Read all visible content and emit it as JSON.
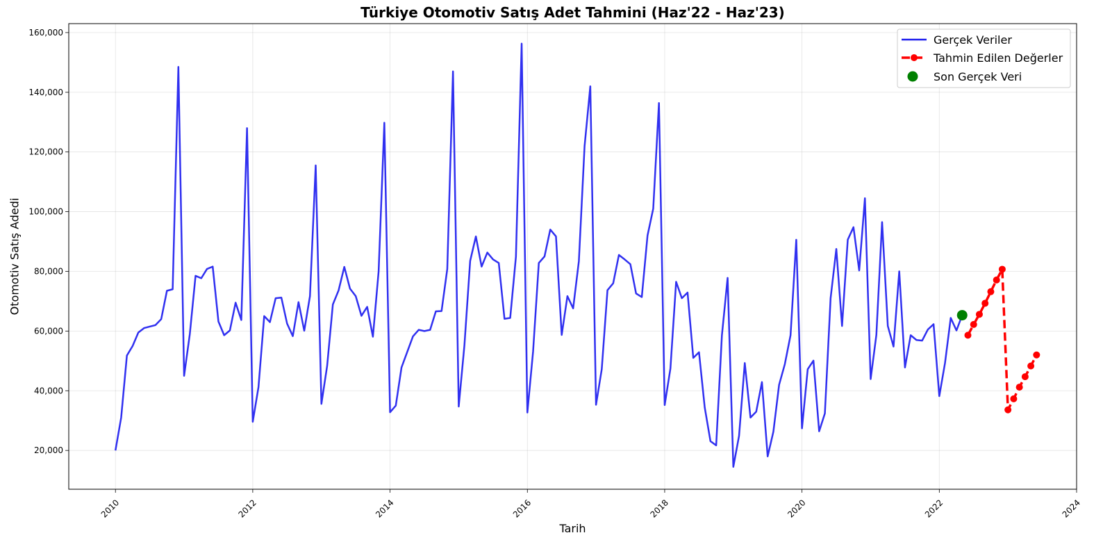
{
  "chart_data": {
    "type": "line",
    "title": "Türkiye Otomotiv Satış Adet Tahmini (Haz'22 - Haz'23)",
    "xlabel": "Tarih",
    "ylabel": "Otomotiv Satış Adedi",
    "xlim": [
      2009.32,
      2024.0
    ],
    "ylim": [
      7000,
      163000
    ],
    "x_ticks": [
      2010,
      2012,
      2014,
      2016,
      2018,
      2020,
      2022,
      2024
    ],
    "x_tick_labels": [
      "2010",
      "2012",
      "2014",
      "2016",
      "2018",
      "2020",
      "2022",
      "2024"
    ],
    "y_ticks": [
      20000,
      40000,
      60000,
      80000,
      100000,
      120000,
      140000,
      160000
    ],
    "y_tick_labels": [
      "20,000",
      "40,000",
      "60,000",
      "80,000",
      "100,000",
      "120,000",
      "140,000",
      "160,000"
    ],
    "grid": true,
    "legend_position": "top-right",
    "series": [
      {
        "name": "Gerçek Veriler",
        "style": "line",
        "color": "#1a1aee",
        "start": "2010-01",
        "frequency": "monthly",
        "values": [
          20000,
          31000,
          51800,
          55000,
          59500,
          61000,
          61500,
          62000,
          64000,
          73500,
          74000,
          148500,
          45000,
          59000,
          78500,
          77700,
          80800,
          81600,
          63200,
          58600,
          60200,
          69500,
          63700,
          128000,
          29600,
          41200,
          65000,
          63000,
          71000,
          71200,
          62500,
          58300,
          69700,
          60100,
          71700,
          115500,
          35600,
          48300,
          68900,
          73600,
          81500,
          74200,
          71700,
          65100,
          68100,
          58100,
          80000,
          129800,
          32800,
          35000,
          47800,
          53000,
          58200,
          60400,
          60000,
          60400,
          66600,
          66700,
          80800,
          147000,
          34700,
          55300,
          83500,
          91700,
          81600,
          86300,
          84000,
          82800,
          64100,
          64400,
          84900,
          156300,
          32700,
          53200,
          82800,
          85000,
          94000,
          91700,
          58700,
          71700,
          67600,
          83400,
          122000,
          142000,
          35300,
          47200,
          73700,
          76000,
          85500,
          84000,
          82400,
          72600,
          71400,
          92000,
          101000,
          136400,
          35200,
          47400,
          76500,
          71000,
          72900,
          51000,
          52900,
          34400,
          23100,
          21700,
          58500,
          77800,
          14500,
          24900,
          49300,
          31000,
          33000,
          42900,
          18000,
          26300,
          42000,
          48900,
          58600,
          90600,
          27400,
          47200,
          50100,
          26400,
          32400,
          71000,
          87500,
          61700,
          90600,
          94800,
          80300,
          104500,
          43900,
          58700,
          96500,
          61700,
          54800,
          80000,
          47800,
          58600,
          57000,
          56800,
          60500,
          62300,
          38200,
          49300,
          64400,
          60200,
          65300
        ]
      },
      {
        "name": "Tahmin Edilen Değerler",
        "style": "dashed-line-markers",
        "color": "#ff0000",
        "start": "2022-06",
        "frequency": "monthly",
        "values": [
          58600,
          62200,
          65600,
          69300,
          73200,
          77100,
          80700,
          33600,
          37300,
          41200,
          44700,
          48300,
          52000
        ]
      },
      {
        "name": "Son Gerçek Veri",
        "style": "scatter",
        "color": "#008000",
        "points": [
          {
            "x": "2022-05",
            "y": 65300
          }
        ]
      }
    ]
  }
}
